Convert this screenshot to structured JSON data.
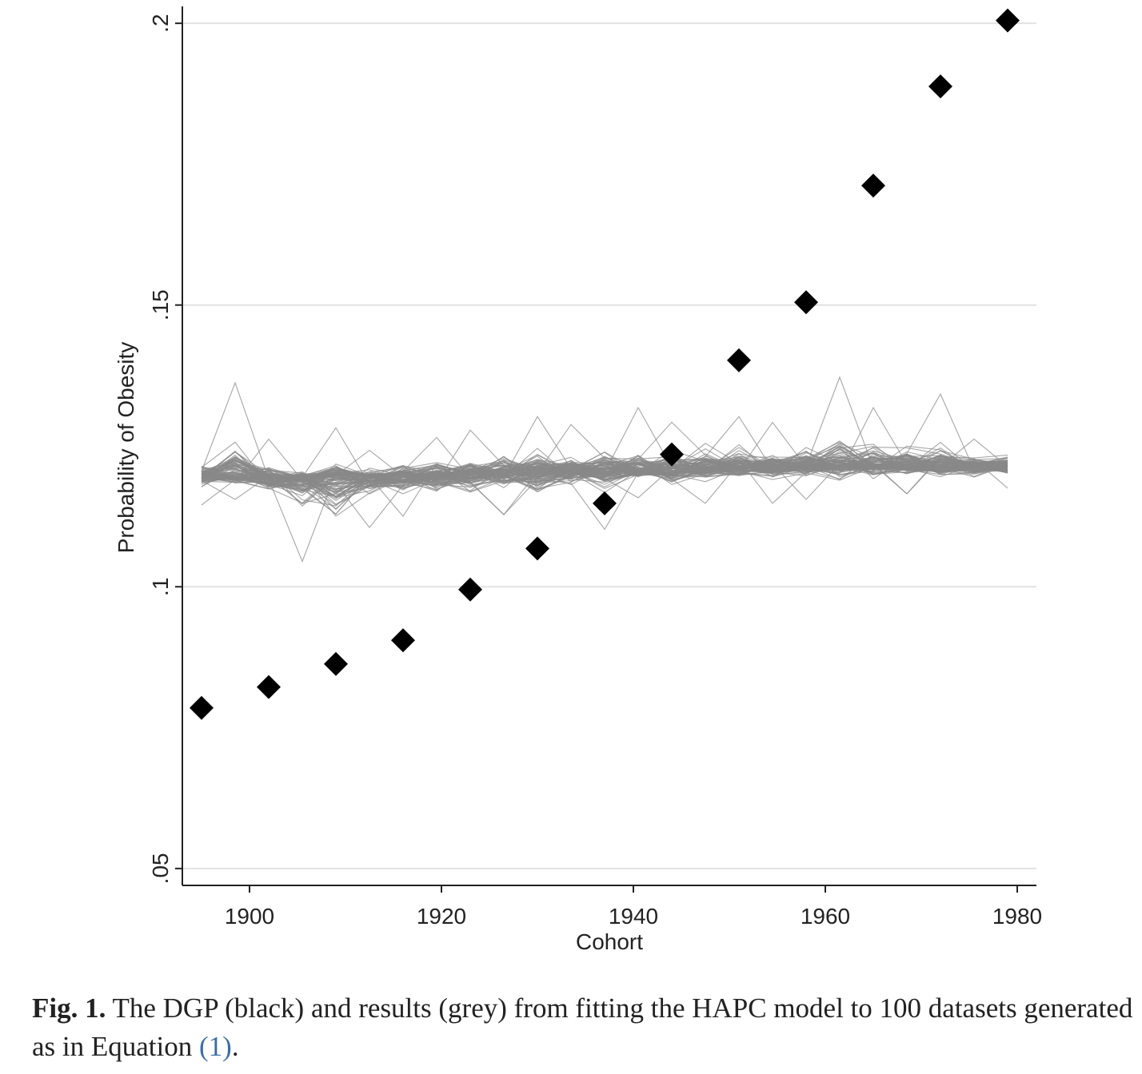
{
  "chart_data": {
    "type": "scatter",
    "title": "",
    "xlabel": "Cohort",
    "ylabel": "Probability of Obesity",
    "xlim": [
      1893,
      1982
    ],
    "ylim": [
      0.047,
      0.203
    ],
    "x_ticks": [
      1900,
      1920,
      1940,
      1960,
      1980
    ],
    "x_tick_labels": [
      "1900",
      "1920",
      "1940",
      "1960",
      "1980"
    ],
    "y_ticks": [
      0.05,
      0.1,
      0.15,
      0.2
    ],
    "y_tick_labels": [
      ".05",
      ".1",
      ".15",
      ".2"
    ],
    "grid": "horizontal",
    "series": [
      {
        "role": "DGP",
        "color": "#000000",
        "marker": "diamond",
        "x": [
          1895,
          1902,
          1909,
          1916,
          1923,
          1930,
          1937,
          1944,
          1951,
          1958,
          1965,
          1972,
          1979
        ],
        "y": [
          0.0785,
          0.0822,
          0.0863,
          0.0905,
          0.0995,
          0.1068,
          0.1148,
          0.1235,
          0.1402,
          0.1505,
          0.1712,
          0.1888,
          0.2005
        ]
      },
      {
        "role": "HAPC fits",
        "color": "#888888",
        "style": "thin-lines",
        "line_count": 100,
        "x": [
          1895,
          1898.5,
          1902,
          1905.5,
          1909,
          1912.5,
          1916,
          1919.5,
          1923,
          1926.5,
          1930,
          1933.5,
          1937,
          1940.5,
          1944,
          1947.5,
          1951,
          1954.5,
          1958,
          1961.5,
          1965,
          1968.5,
          1972,
          1975.5,
          1979
        ],
        "mean": [
          0.1197,
          0.1197,
          0.1194,
          0.1192,
          0.1191,
          0.1193,
          0.1195,
          0.1197,
          0.1198,
          0.1201,
          0.1203,
          0.1205,
          0.1206,
          0.1207,
          0.1208,
          0.121,
          0.1212,
          0.1213,
          0.1214,
          0.1215,
          0.1216,
          0.1216,
          0.1215,
          0.1214,
          0.1214
        ],
        "min": [
          0.1145,
          0.1155,
          0.1125,
          0.1045,
          0.0995,
          0.1105,
          0.1125,
          0.1115,
          0.1118,
          0.1128,
          0.1095,
          0.1128,
          0.1102,
          0.1158,
          0.1125,
          0.1148,
          0.1155,
          0.1148,
          0.1155,
          0.1148,
          0.1162,
          0.1165,
          0.1155,
          0.1165,
          0.1175
        ],
        "max": [
          0.124,
          0.1362,
          0.1262,
          0.1225,
          0.1282,
          0.1242,
          0.1262,
          0.1265,
          0.1278,
          0.1292,
          0.1302,
          0.1288,
          0.1298,
          0.1318,
          0.1292,
          0.1308,
          0.1302,
          0.1292,
          0.1302,
          0.1372,
          0.1318,
          0.1312,
          0.1342,
          0.1262,
          0.1268
        ]
      }
    ]
  },
  "caption": {
    "label": "Fig. 1.",
    "text_before_ref": " The DGP (black) and results (grey) from fitting the HAPC model to 100 datasets generated as in Equation ",
    "ref": "(1)",
    "text_after_ref": "."
  }
}
